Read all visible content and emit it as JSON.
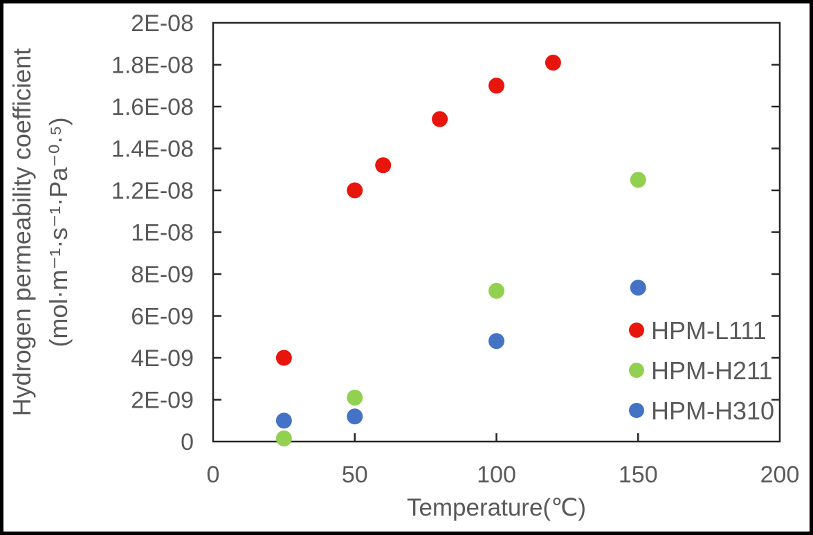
{
  "figure": {
    "background": "#ffffff",
    "border_color": "#000000"
  },
  "chart_data": {
    "type": "scatter",
    "title": "",
    "xlabel": "Temperature(℃)",
    "ylabel_line1": "Hydrogen permeability coefficient",
    "ylabel_line2": "(mol·m⁻¹·s⁻¹·Pa⁻⁰·⁵)",
    "xlim": [
      0,
      200
    ],
    "ylim": [
      0,
      2e-08
    ],
    "grid": false,
    "legend_position": "inside-right",
    "x_ticks": [
      {
        "value": 0,
        "label": "0"
      },
      {
        "value": 50,
        "label": "50"
      },
      {
        "value": 100,
        "label": "100"
      },
      {
        "value": 150,
        "label": "150"
      },
      {
        "value": 200,
        "label": "200"
      }
    ],
    "y_ticks": [
      {
        "value": 0,
        "label": "0"
      },
      {
        "value": 2e-09,
        "label": "2E-09"
      },
      {
        "value": 4e-09,
        "label": "4E-09"
      },
      {
        "value": 6e-09,
        "label": "6E-09"
      },
      {
        "value": 8e-09,
        "label": "8E-09"
      },
      {
        "value": 1e-08,
        "label": "1E-08"
      },
      {
        "value": 1.2e-08,
        "label": "1.2E-08"
      },
      {
        "value": 1.4e-08,
        "label": "1.4E-08"
      },
      {
        "value": 1.6e-08,
        "label": "1.6E-08"
      },
      {
        "value": 1.8e-08,
        "label": "1.8E-08"
      },
      {
        "value": 2e-08,
        "label": "2E-08"
      }
    ],
    "series": [
      {
        "name": "HPM-L111",
        "color": "#E8150D",
        "points": [
          [
            25,
            4e-09
          ],
          [
            50,
            1.2e-08
          ],
          [
            60,
            1.32e-08
          ],
          [
            80,
            1.54e-08
          ],
          [
            100,
            1.7e-08
          ],
          [
            120,
            1.81e-08
          ]
        ]
      },
      {
        "name": "HPM-H211",
        "color": "#92D050",
        "points": [
          [
            25,
            1.5e-10
          ],
          [
            50,
            2.1e-09
          ],
          [
            100,
            7.2e-09
          ],
          [
            150,
            1.25e-08
          ]
        ]
      },
      {
        "name": "HPM-H310",
        "color": "#4472C4",
        "points": [
          [
            25,
            1e-09
          ],
          [
            50,
            1.2e-09
          ],
          [
            100,
            4.8e-09
          ],
          [
            150,
            7.35e-09
          ]
        ]
      }
    ],
    "text_color": "#595959",
    "axis_color": "#262626"
  }
}
